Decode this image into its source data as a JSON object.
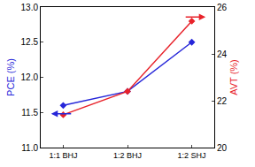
{
  "chart_data": {
    "type": "line",
    "categories": [
      "1:1 BHJ",
      "1:2 BHJ",
      "1:2 SHJ"
    ],
    "series": [
      {
        "name": "PCE (%)",
        "color": "#2626d9",
        "marker": "diamond",
        "values": [
          11.6,
          11.8,
          12.5
        ]
      },
      {
        "name": "AVT (%)",
        "color": "#e8222a",
        "marker": "diamond",
        "axis": "y2",
        "values": [
          21.4,
          22.4,
          25.4
        ]
      }
    ],
    "ylabel": "PCE (%)",
    "y2label": "AVT (%)",
    "ylim": [
      11.0,
      13.0
    ],
    "yticks": [
      {
        "value": 11.0,
        "label": "11.0"
      },
      {
        "value": 11.5,
        "label": "11.5"
      },
      {
        "value": 12.0,
        "label": "12.0"
      },
      {
        "value": 12.5,
        "label": "12.5"
      },
      {
        "value": 13.0,
        "label": "13.0"
      }
    ],
    "y2lim": [
      20,
      26
    ],
    "y2ticks": [
      20,
      22,
      24,
      26
    ],
    "grid": false
  }
}
